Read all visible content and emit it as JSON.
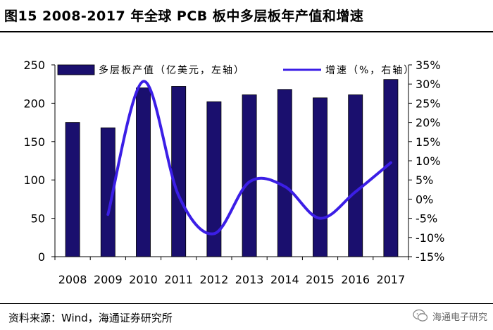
{
  "title": "图15  2008-2017 年全球 PCB 板中多层板年产值和增速",
  "source": "资料来源：Wind，海通证券研究所",
  "watermark": "海通电子研究",
  "chart_data": {
    "type": "bar",
    "categories": [
      "2008",
      "2009",
      "2010",
      "2011",
      "2012",
      "2013",
      "2014",
      "2015",
      "2016",
      "2017"
    ],
    "series": [
      {
        "name": "多层板产值（亿美元，左轴）",
        "type": "bar",
        "axis": "left",
        "color": "#1a0f6e",
        "values": [
          175,
          168,
          220,
          222,
          202,
          211,
          218,
          207,
          211,
          231
        ]
      },
      {
        "name": "增速（%，右轴）",
        "type": "line",
        "axis": "right",
        "color": "#3b1ee6",
        "values": [
          null,
          -4,
          30.7,
          0.9,
          -9,
          4.5,
          3.3,
          -5,
          1.9,
          9.5
        ]
      }
    ],
    "y_left": {
      "min": 0,
      "max": 250,
      "ticks": [
        0,
        50,
        100,
        150,
        200,
        250
      ]
    },
    "y_right": {
      "min": -15,
      "max": 35,
      "ticks": [
        "-15%",
        "-10%",
        "-5%",
        "0%",
        "5%",
        "10%",
        "15%",
        "20%",
        "25%",
        "30%",
        "35%"
      ]
    },
    "legend_position": "top"
  }
}
